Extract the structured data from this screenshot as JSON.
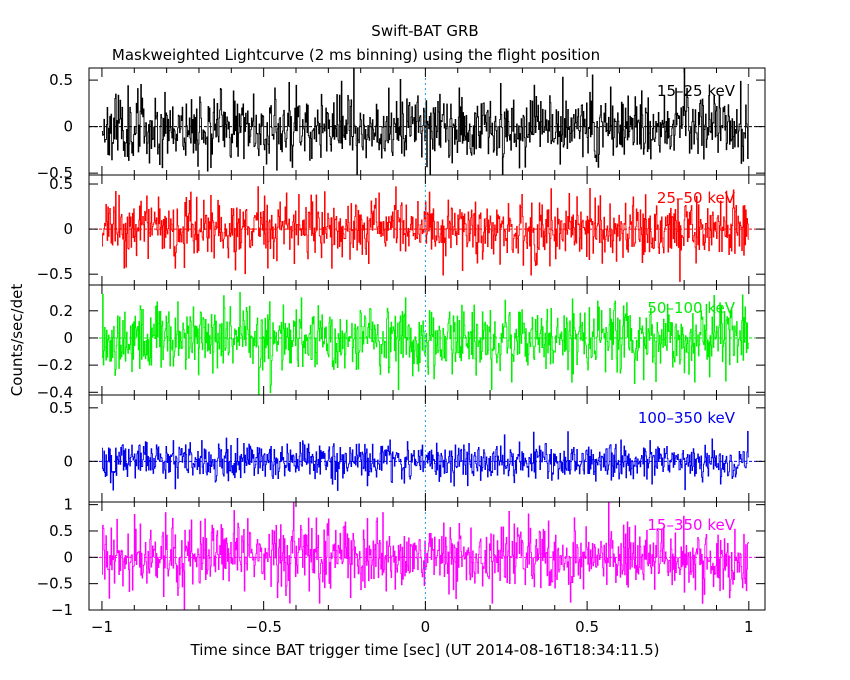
{
  "chart_data": {
    "type": "line",
    "title": "Swift-BAT GRB",
    "subtitle": "Maskweighted Lightcurve (2 ms binning) using the flight position",
    "xlabel": "Time since BAT trigger time [sec] (UT 2014-08-16T18:34:11.5)",
    "ylabel": "Counts/sec/det",
    "xlim": [
      -1.04,
      1.05
    ],
    "x_ticks": [
      -1,
      -0.5,
      0,
      0.5,
      1
    ],
    "x_tick_labels": [
      "−1",
      "−0.5",
      "0",
      "0.5",
      "1"
    ],
    "time_range": [
      -1.0,
      1.0
    ],
    "bin_size_sec": 0.002,
    "trigger_marker_x": 0,
    "panels": [
      {
        "band": "15–25 keV",
        "color": "#000000",
        "ylim": [
          -0.52,
          0.63
        ],
        "y_ticks": [
          -0.5,
          0,
          0.5
        ],
        "y_tick_labels": [
          "−0.5",
          "0",
          "0.5"
        ],
        "noise_sigma": 0.19,
        "seed": 11
      },
      {
        "band": "25–50 keV",
        "color": "#ff0000",
        "ylim": [
          -0.62,
          0.6
        ],
        "y_ticks": [
          -0.5,
          0,
          0.5
        ],
        "y_tick_labels": [
          "−0.5",
          "0",
          "0.5"
        ],
        "noise_sigma": 0.17,
        "seed": 23
      },
      {
        "band": "50–100 keV",
        "color": "#00ee00",
        "ylim": [
          -0.42,
          0.39
        ],
        "y_ticks": [
          -0.4,
          -0.2,
          0,
          0.2
        ],
        "y_tick_labels": [
          "−0.4",
          "−0.2",
          "0",
          "0.2"
        ],
        "noise_sigma": 0.13,
        "seed": 37
      },
      {
        "band": "100–350 keV",
        "color": "#0000ee",
        "ylim": [
          -0.38,
          0.62
        ],
        "y_ticks": [
          0,
          0.5
        ],
        "y_tick_labels": [
          "0",
          "0.5"
        ],
        "noise_sigma": 0.09,
        "seed": 51
      },
      {
        "band": "15–350 keV",
        "color": "#ff00ff",
        "ylim": [
          -1.0,
          1.05
        ],
        "y_ticks": [
          -1,
          -0.5,
          0,
          0.5,
          1
        ],
        "y_tick_labels": [
          "−1",
          "−0.5",
          "0",
          "0.5",
          "1"
        ],
        "noise_sigma": 0.32,
        "seed": 67
      }
    ]
  }
}
